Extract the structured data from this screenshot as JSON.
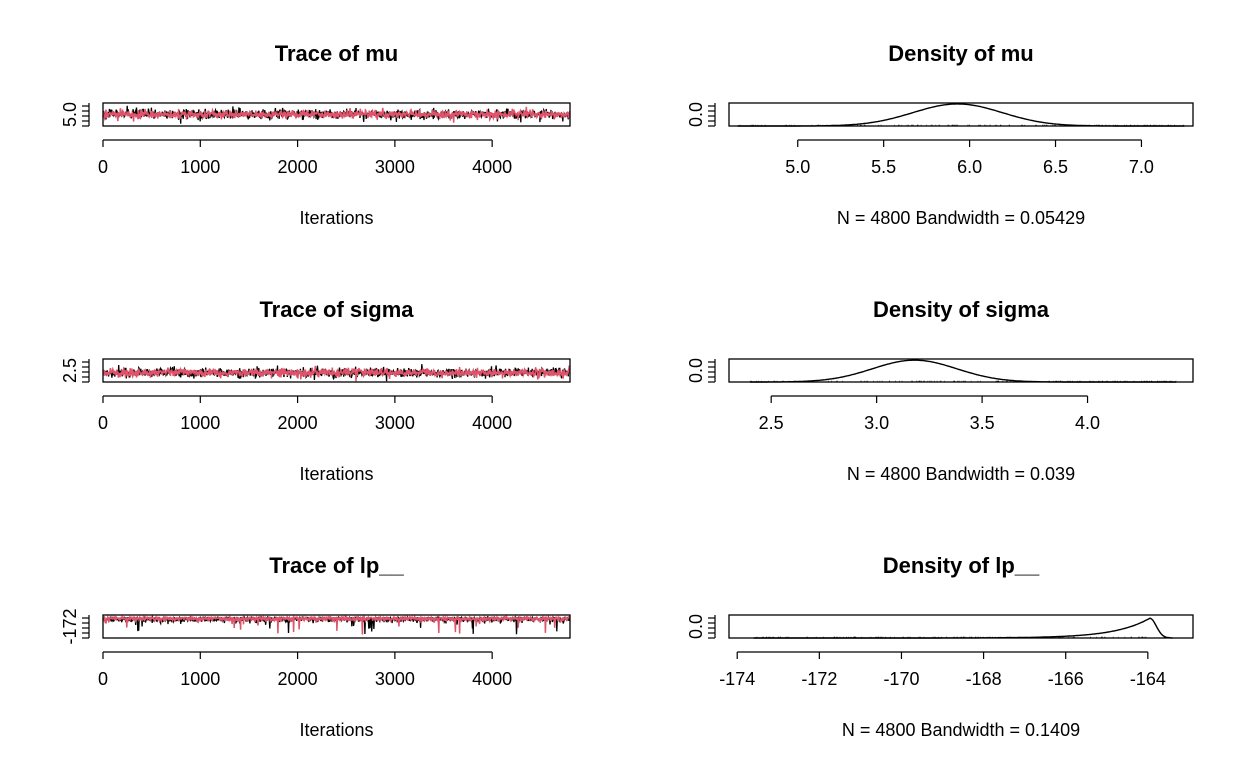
{
  "chart_data": [
    {
      "type": "line",
      "title": "Trace of mu",
      "xlabel": "Iterations",
      "x_ticks": [
        "0",
        "1000",
        "2000",
        "3000",
        "4000"
      ],
      "x_tick_values": [
        0,
        1000,
        2000,
        3000,
        4000
      ],
      "y_ticks": [
        "5.0"
      ],
      "y_tick_values": [
        5.0
      ],
      "xlim": [
        0,
        4800
      ],
      "ylim": [
        4.6,
        7.2
      ],
      "series": [
        {
          "color": "#000000",
          "mean": 5.93,
          "sd": 0.26
        },
        {
          "color": "#DF536B",
          "mean": 5.93,
          "sd": 0.22
        }
      ]
    },
    {
      "type": "line",
      "title": "Density of mu",
      "xlabel": "N = 4800   Bandwidth = 0.05429",
      "x_ticks": [
        "5.0",
        "5.5",
        "6.0",
        "6.5",
        "7.0"
      ],
      "x_tick_values": [
        5.0,
        5.5,
        6.0,
        6.5,
        7.0
      ],
      "y_ticks": [
        "0.0"
      ],
      "y_tick_values": [
        0.0
      ],
      "xlim": [
        4.6,
        7.3
      ],
      "ylim": [
        0,
        1.6
      ],
      "density": {
        "shape": "normal",
        "mean": 5.93,
        "sd": 0.26,
        "from": 4.65,
        "to": 7.25
      }
    },
    {
      "type": "line",
      "title": "Trace of sigma",
      "xlabel": "Iterations",
      "x_ticks": [
        "0",
        "1000",
        "2000",
        "3000",
        "4000"
      ],
      "x_tick_values": [
        0,
        1000,
        2000,
        3000,
        4000
      ],
      "y_ticks": [
        "2.5"
      ],
      "y_tick_values": [
        2.5
      ],
      "xlim": [
        0,
        4800
      ],
      "ylim": [
        2.35,
        4.45
      ],
      "series": [
        {
          "color": "#000000",
          "mean": 3.2,
          "sd": 0.2
        },
        {
          "color": "#DF536B",
          "mean": 3.2,
          "sd": 0.18
        }
      ]
    },
    {
      "type": "line",
      "title": "Density of sigma",
      "xlabel": "N = 4800   Bandwidth = 0.039",
      "x_ticks": [
        "2.5",
        "3.0",
        "3.5",
        "4.0"
      ],
      "x_tick_values": [
        2.5,
        3.0,
        3.5,
        4.0
      ],
      "y_ticks": [
        "0.0"
      ],
      "y_tick_values": [
        0.0
      ],
      "xlim": [
        2.3,
        4.5
      ],
      "ylim": [
        0,
        2.1
      ],
      "density": {
        "shape": "normal",
        "mean": 3.18,
        "sd": 0.2,
        "from": 2.4,
        "to": 4.42
      }
    },
    {
      "type": "line",
      "title": "Trace of lp__",
      "xlabel": "Iterations",
      "x_ticks": [
        "0",
        "1000",
        "2000",
        "3000",
        "4000"
      ],
      "x_tick_values": [
        0,
        1000,
        2000,
        3000,
        4000
      ],
      "y_ticks": [
        "-172"
      ],
      "y_tick_values": [
        -172
      ],
      "xlim": [
        0,
        4800
      ],
      "ylim": [
        -174.5,
        -162.8
      ],
      "series": [
        {
          "color": "#000000",
          "mode": -163.9,
          "skew": "left"
        },
        {
          "color": "#DF536B",
          "mode": -163.9,
          "skew": "left"
        }
      ]
    },
    {
      "type": "line",
      "title": "Density of lp__",
      "xlabel": "N = 4800   Bandwidth = 0.1409",
      "x_ticks": [
        "-174",
        "-172",
        "-170",
        "-168",
        "-166",
        "-164"
      ],
      "x_tick_values": [
        -174,
        -172,
        -170,
        -168,
        -166,
        -164
      ],
      "y_ticks": [
        "0.0"
      ],
      "y_tick_values": [
        0.0
      ],
      "xlim": [
        -174.2,
        -162.9
      ],
      "ylim": [
        0,
        0.5
      ],
      "density": {
        "shape": "left-skewed",
        "mode": -163.95,
        "from": -173.6,
        "to": -163.4
      }
    }
  ]
}
